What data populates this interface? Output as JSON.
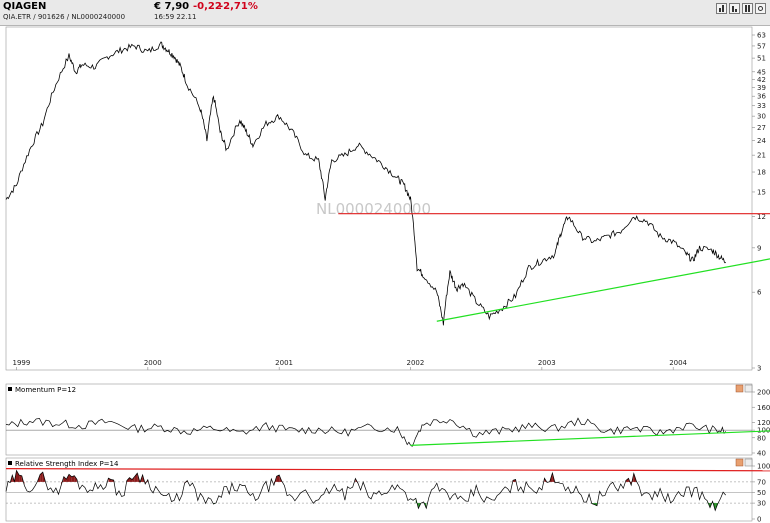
{
  "header": {
    "name": "QIAGEN",
    "ids": "QIA.ETR  /  901626  /  NL0000240000",
    "price": "€ 7,90",
    "change": "-0,22",
    "change_pct": "-2,71%",
    "time": "16:59  22.11"
  },
  "toolbar": {
    "buttons": [
      "bar-chart-icon",
      "line-chart-icon",
      "list-icon",
      "settings-icon"
    ]
  },
  "colors": {
    "price_line": "#000000",
    "resistance": "#e02020",
    "support": "#22e022",
    "rsi_overbought_fill": "#8b1a1a",
    "rsi_oversold_fill": "#1e8a1e",
    "axis_grid": "#888888"
  },
  "chart_data": [
    {
      "type": "line",
      "panel": "price",
      "watermark": "NL0000240000",
      "y_scale": "log",
      "yticks": [
        3,
        6,
        9,
        12,
        15,
        18,
        21,
        24,
        27,
        30,
        33,
        36,
        39,
        42,
        45,
        51,
        57,
        63
      ],
      "xticks": [
        "1999",
        "2000",
        "2001",
        "2002",
        "2003",
        "2004"
      ],
      "ylim": [
        3,
        63
      ],
      "series": [
        {
          "x": [
            1998.92,
            1999.0,
            1999.1,
            1999.2,
            1999.3,
            1999.4,
            1999.45,
            1999.5,
            1999.6,
            1999.7,
            1999.8,
            1999.9,
            2000.0,
            2000.1,
            2000.15,
            2000.2,
            2000.25,
            2000.3,
            2000.4,
            2000.45,
            2000.5,
            2000.55,
            2000.6,
            2000.7,
            2000.75,
            2000.8,
            2000.9,
            2001.0,
            2001.1,
            2001.2,
            2001.3,
            2001.35,
            2001.4,
            2001.5,
            2001.6,
            2001.7,
            2001.8,
            2001.9,
            2001.95,
            2002.0,
            2002.05,
            2002.1,
            2002.2,
            2002.25,
            2002.3,
            2002.35,
            2002.4,
            2002.5,
            2002.6,
            2002.7,
            2002.8,
            2002.9,
            2003.0,
            2003.1,
            2003.15,
            2003.2,
            2003.3,
            2003.4,
            2003.5,
            2003.6,
            2003.7,
            2003.8,
            2003.9,
            2004.0,
            2004.1,
            2004.15,
            2004.2,
            2004.3,
            2004.35,
            2004.4
          ],
          "y": [
            14,
            16,
            22,
            28,
            40,
            52,
            45,
            48,
            47,
            52,
            55,
            57,
            54,
            58,
            55,
            52,
            47,
            40,
            32,
            24,
            36,
            26,
            22,
            29,
            26,
            23,
            28,
            30,
            26,
            21,
            20,
            14,
            20,
            21,
            23,
            21,
            19,
            17,
            16,
            14,
            7.5,
            7,
            6,
            4.5,
            7.2,
            6.2,
            6.5,
            5.5,
            4.8,
            5.2,
            5.8,
            7.5,
            8.0,
            8.5,
            10.5,
            12.0,
            10.0,
            9.5,
            10.0,
            10.5,
            12.0,
            11.5,
            10.0,
            9.5,
            8.5,
            8.0,
            9.0,
            8.8,
            8.3,
            7.9
          ]
        }
      ],
      "annotations": [
        {
          "kind": "resistance_line",
          "x": [
            2001.45,
            2004.6
          ],
          "y": [
            12.3,
            12.3
          ]
        },
        {
          "kind": "support_line",
          "x": [
            2002.2,
            2004.6
          ],
          "y": [
            4.6,
            7.7
          ]
        }
      ]
    },
    {
      "type": "line",
      "panel": "momentum",
      "title": "Momentum P=12",
      "yticks": [
        40,
        80,
        100,
        120,
        160,
        200
      ],
      "ylim": [
        40,
        200
      ],
      "reference": 100,
      "series": [
        {
          "x": [
            1998.92,
            1999.1,
            1999.3,
            1999.5,
            1999.7,
            1999.9,
            2000.1,
            2000.3,
            2000.5,
            2000.7,
            2000.9,
            2001.1,
            2001.3,
            2001.5,
            2001.7,
            2001.9,
            2002.0,
            2002.1,
            2002.3,
            2002.5,
            2002.7,
            2002.9,
            2003.1,
            2003.3,
            2003.5,
            2003.7,
            2003.9,
            2004.1,
            2004.3,
            2004.4
          ],
          "y": [
            110,
            125,
            118,
            112,
            122,
            104,
            108,
            96,
            105,
            92,
            110,
            99,
            102,
            94,
            108,
            103,
            60,
            118,
            130,
            90,
            98,
            110,
            104,
            125,
            97,
            105,
            93,
            112,
            101,
            97
          ]
        }
      ],
      "annotations": [
        {
          "kind": "support_line",
          "x": [
            2002.0,
            2004.6
          ],
          "y": [
            60,
            98
          ]
        }
      ]
    },
    {
      "type": "line",
      "panel": "rsi",
      "title": "Relative Strength Index P=14",
      "yticks": [
        0,
        30,
        50,
        70,
        100
      ],
      "ylim": [
        0,
        100
      ],
      "levels": [
        30,
        50,
        70
      ],
      "series": [
        {
          "x": [
            1998.92,
            1999.0,
            1999.1,
            1999.2,
            1999.3,
            1999.4,
            1999.5,
            1999.6,
            1999.7,
            1999.8,
            1999.9,
            2000.0,
            2000.1,
            2000.2,
            2000.3,
            2000.4,
            2000.5,
            2000.6,
            2000.7,
            2000.8,
            2000.9,
            2001.0,
            2001.1,
            2001.2,
            2001.3,
            2001.4,
            2001.5,
            2001.6,
            2001.7,
            2001.8,
            2001.9,
            2002.0,
            2002.1,
            2002.2,
            2002.3,
            2002.4,
            2002.5,
            2002.6,
            2002.7,
            2002.8,
            2002.9,
            2003.0,
            2003.1,
            2003.2,
            2003.3,
            2003.4,
            2003.5,
            2003.6,
            2003.7,
            2003.8,
            2003.9,
            2004.0,
            2004.1,
            2004.2,
            2004.3,
            2004.4
          ],
          "y": [
            55,
            82,
            60,
            78,
            50,
            85,
            62,
            58,
            74,
            45,
            88,
            70,
            48,
            30,
            68,
            40,
            26,
            55,
            62,
            38,
            60,
            72,
            35,
            58,
            28,
            62,
            45,
            70,
            40,
            55,
            60,
            42,
            25,
            60,
            45,
            28,
            55,
            30,
            50,
            65,
            58,
            62,
            80,
            60,
            45,
            32,
            55,
            62,
            78,
            40,
            50,
            30,
            58,
            48,
            22,
            45
          ]
        }
      ],
      "annotations": [
        {
          "kind": "resistance_line",
          "x": [
            1998.92,
            2004.6
          ],
          "y": [
            95,
            91
          ]
        }
      ]
    }
  ]
}
